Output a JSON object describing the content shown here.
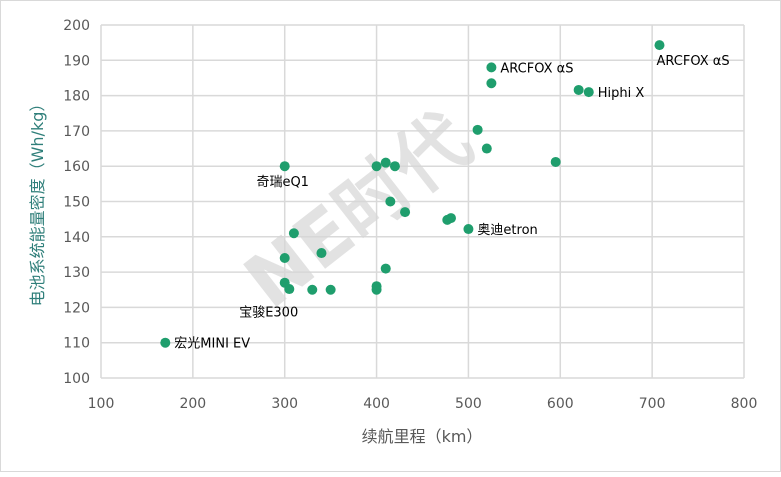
{
  "chart_data": {
    "type": "scatter",
    "title": "",
    "xlabel": "续航里程（km）",
    "ylabel": "电池系统能量密度（Wh/kg）",
    "xlim": [
      100,
      800
    ],
    "ylim": [
      100,
      200
    ],
    "xticks": [
      100,
      200,
      300,
      400,
      500,
      600,
      700,
      800
    ],
    "yticks": [
      100,
      110,
      120,
      130,
      140,
      150,
      160,
      170,
      180,
      190,
      200
    ],
    "grid": true,
    "marker_color": "#1f9e6d",
    "watermark": "NE时代",
    "points": [
      {
        "x": 170,
        "y": 110,
        "label": "宏光MINI EV",
        "pos": "right"
      },
      {
        "x": 300,
        "y": 160,
        "label": "奇瑞eQ1",
        "pos": "below"
      },
      {
        "x": 300,
        "y": 134
      },
      {
        "x": 310,
        "y": 141
      },
      {
        "x": 340,
        "y": 135.4
      },
      {
        "x": 300,
        "y": 127,
        "label": "宝骏E300",
        "pos": "belowleft"
      },
      {
        "x": 305,
        "y": 125.2
      },
      {
        "x": 330,
        "y": 125
      },
      {
        "x": 350,
        "y": 125
      },
      {
        "x": 400,
        "y": 126
      },
      {
        "x": 400,
        "y": 125
      },
      {
        "x": 410,
        "y": 131
      },
      {
        "x": 400,
        "y": 160
      },
      {
        "x": 410,
        "y": 161
      },
      {
        "x": 420,
        "y": 160
      },
      {
        "x": 415,
        "y": 150
      },
      {
        "x": 431,
        "y": 147
      },
      {
        "x": 477,
        "y": 144.8
      },
      {
        "x": 481,
        "y": 145.3
      },
      {
        "x": 500,
        "y": 142.2,
        "label": "奥迪etron",
        "pos": "right"
      },
      {
        "x": 510,
        "y": 170.3
      },
      {
        "x": 520,
        "y": 165
      },
      {
        "x": 595,
        "y": 161.2
      },
      {
        "x": 525,
        "y": 188,
        "label": "ARCFOX αS",
        "pos": "right"
      },
      {
        "x": 525,
        "y": 183.5
      },
      {
        "x": 620,
        "y": 181.6
      },
      {
        "x": 631,
        "y": 181,
        "label": "Hiphi X",
        "pos": "right"
      },
      {
        "x": 708,
        "y": 194.3,
        "label": "ARCFOX αS",
        "pos": "below"
      }
    ]
  }
}
